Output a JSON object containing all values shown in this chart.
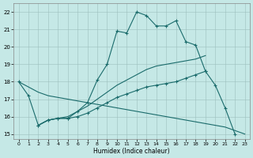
{
  "title": "",
  "xlabel": "Humidex (Indice chaleur)",
  "xlim": [
    -0.5,
    23.5
  ],
  "ylim": [
    14.7,
    22.5
  ],
  "xticks": [
    0,
    1,
    2,
    3,
    4,
    5,
    6,
    7,
    8,
    9,
    10,
    11,
    12,
    13,
    14,
    15,
    16,
    17,
    18,
    19,
    20,
    21,
    22,
    23
  ],
  "yticks": [
    15,
    16,
    17,
    18,
    19,
    20,
    21,
    22
  ],
  "background_color": "#c5e8e6",
  "grid_color": "#9dbfbd",
  "line_color": "#1a6b6b",
  "line1_x": [
    0,
    1,
    2,
    3,
    4,
    5,
    6,
    7,
    8,
    9,
    10,
    11,
    12,
    13,
    14,
    15,
    16,
    17,
    18,
    19,
    20,
    21,
    22
  ],
  "line1_y": [
    18.0,
    17.2,
    15.5,
    15.8,
    15.9,
    15.9,
    16.3,
    16.8,
    18.1,
    19.0,
    20.9,
    20.8,
    22.0,
    21.8,
    21.2,
    21.2,
    21.5,
    20.3,
    20.1,
    18.6,
    17.8,
    16.5,
    15.0
  ],
  "line2_x": [
    0,
    1,
    2,
    3,
    4,
    5,
    6,
    7,
    8,
    9,
    10,
    11,
    12,
    13,
    14,
    15,
    16,
    17,
    18,
    19,
    20,
    21,
    22,
    23
  ],
  "line2_y": [
    18.0,
    17.7,
    17.4,
    17.2,
    17.1,
    17.0,
    16.9,
    16.8,
    16.7,
    16.6,
    16.5,
    16.4,
    16.3,
    16.2,
    16.1,
    16.0,
    15.9,
    15.8,
    15.7,
    15.6,
    15.5,
    15.4,
    15.2,
    15.0
  ],
  "line3_x": [
    2,
    3,
    4,
    5,
    6,
    7,
    8,
    9,
    10,
    11,
    12,
    13,
    14,
    15,
    16,
    17,
    18,
    19
  ],
  "line3_y": [
    15.5,
    15.8,
    15.9,
    15.9,
    16.0,
    16.2,
    16.5,
    16.8,
    17.1,
    17.3,
    17.5,
    17.7,
    17.8,
    17.9,
    18.0,
    18.2,
    18.4,
    18.6
  ],
  "line4_x": [
    2,
    3,
    4,
    5,
    6,
    7,
    8,
    9,
    10,
    11,
    12,
    13,
    14,
    15,
    16,
    17,
    18,
    19
  ],
  "line4_y": [
    15.5,
    15.8,
    15.9,
    16.0,
    16.3,
    16.6,
    17.0,
    17.4,
    17.8,
    18.1,
    18.4,
    18.7,
    18.9,
    19.0,
    19.1,
    19.2,
    19.3,
    19.5
  ],
  "figsize": [
    3.2,
    2.0
  ],
  "dpi": 100
}
